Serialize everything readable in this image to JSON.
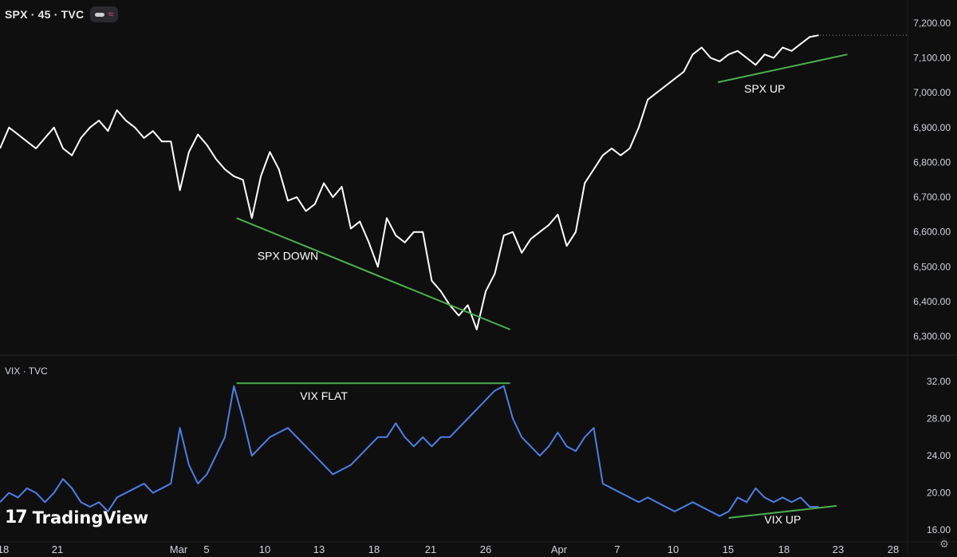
{
  "header": {
    "symbol": "SPX · 45 · TVC"
  },
  "lower_pane": {
    "title": "VIX · TVC"
  },
  "branding": {
    "logo_mark": "17",
    "logo_text": "TradingView"
  },
  "icons": {
    "toggle": "visibility-toggle-icon",
    "wave": "indicator-wave-icon",
    "settings": "settings-gear-icon"
  },
  "colors": {
    "background": "#0f0f0f",
    "spx_line": "#ffffff",
    "vix_line": "#4d7fe6",
    "trendline": "#4caf50",
    "divider": "#2a2a2e",
    "axis_text": "#d1d4dc"
  },
  "chart_data": [
    {
      "type": "line",
      "name": "SPX",
      "x_labels": [
        "18",
        "21",
        "Mar",
        "5",
        "10",
        "13",
        "18",
        "21",
        "26",
        "Apr",
        "7",
        "10",
        "15",
        "18",
        "23",
        "28"
      ],
      "y_ticks": [
        "6,300.00",
        "6,400.00",
        "6,500.00",
        "6,600.00",
        "6,700.00",
        "6,800.00",
        "6,900.00",
        "7,000.00",
        "7,100.00",
        "7,200.00"
      ],
      "ylim": [
        6290,
        7225
      ],
      "x_range": [
        0,
        100
      ],
      "series": [
        {
          "values": [
            [
              0,
              6840
            ],
            [
              1,
              6900
            ],
            [
              2,
              6880
            ],
            [
              3,
              6860
            ],
            [
              4,
              6840
            ],
            [
              5,
              6870
            ],
            [
              6,
              6900
            ],
            [
              7,
              6840
            ],
            [
              8,
              6820
            ],
            [
              9,
              6870
            ],
            [
              10,
              6900
            ],
            [
              11,
              6920
            ],
            [
              12,
              6890
            ],
            [
              13,
              6950
            ],
            [
              14,
              6920
            ],
            [
              15,
              6900
            ],
            [
              16,
              6870
            ],
            [
              17,
              6890
            ],
            [
              18,
              6860
            ],
            [
              19,
              6860
            ],
            [
              20,
              6720
            ],
            [
              21,
              6830
            ],
            [
              22,
              6880
            ],
            [
              23,
              6850
            ],
            [
              24,
              6810
            ],
            [
              25,
              6780
            ],
            [
              26,
              6760
            ],
            [
              27,
              6750
            ],
            [
              28,
              6640
            ],
            [
              29,
              6760
            ],
            [
              30,
              6830
            ],
            [
              31,
              6780
            ],
            [
              32,
              6690
            ],
            [
              33,
              6700
            ],
            [
              34,
              6660
            ],
            [
              35,
              6680
            ],
            [
              36,
              6740
            ],
            [
              37,
              6700
            ],
            [
              38,
              6730
            ],
            [
              39,
              6610
            ],
            [
              40,
              6630
            ],
            [
              41,
              6570
            ],
            [
              42,
              6500
            ],
            [
              43,
              6640
            ],
            [
              44,
              6590
            ],
            [
              45,
              6570
            ],
            [
              46,
              6600
            ],
            [
              47,
              6600
            ],
            [
              48,
              6460
            ],
            [
              49,
              6430
            ],
            [
              50,
              6390
            ],
            [
              51,
              6360
            ],
            [
              52,
              6390
            ],
            [
              53,
              6320
            ],
            [
              54,
              6430
            ],
            [
              55,
              6480
            ],
            [
              56,
              6590
            ],
            [
              57,
              6600
            ],
            [
              58,
              6540
            ],
            [
              59,
              6580
            ],
            [
              60,
              6600
            ],
            [
              61,
              6620
            ],
            [
              62,
              6650
            ],
            [
              63,
              6560
            ],
            [
              64,
              6600
            ],
            [
              65,
              6740
            ],
            [
              66,
              6780
            ],
            [
              67,
              6820
            ],
            [
              68,
              6840
            ],
            [
              69,
              6820
            ],
            [
              70,
              6840
            ],
            [
              71,
              6900
            ],
            [
              72,
              6980
            ],
            [
              73,
              7000
            ],
            [
              74,
              7020
            ],
            [
              75,
              7040
            ],
            [
              76,
              7060
            ],
            [
              77,
              7110
            ],
            [
              78,
              7130
            ],
            [
              79,
              7100
            ],
            [
              80,
              7090
            ],
            [
              81,
              7110
            ],
            [
              82,
              7120
            ],
            [
              83,
              7100
            ],
            [
              84,
              7080
            ],
            [
              85,
              7110
            ],
            [
              86,
              7100
            ],
            [
              87,
              7130
            ],
            [
              88,
              7120
            ],
            [
              89,
              7140
            ],
            [
              90,
              7160
            ],
            [
              91,
              7165
            ]
          ]
        }
      ],
      "annotations": [
        {
          "text": "SPX DOWN",
          "x": 32,
          "y": 6520
        },
        {
          "text": "SPX UP",
          "x": 85,
          "y": 7000
        }
      ],
      "trendlines": [
        {
          "from": [
            26.3,
            6640
          ],
          "to": [
            56.7,
            6320
          ]
        },
        {
          "from": [
            79.8,
            7030
          ],
          "to": [
            94.2,
            7110
          ]
        }
      ],
      "grid": false
    },
    {
      "type": "line",
      "name": "VIX",
      "y_ticks": [
        "16.00",
        "20.00",
        "24.00",
        "28.00",
        "32.00"
      ],
      "ylim": [
        15.5,
        33.2
      ],
      "x_range": [
        0,
        100
      ],
      "series": [
        {
          "values": [
            [
              0,
              19
            ],
            [
              1,
              20
            ],
            [
              2,
              19.5
            ],
            [
              3,
              20.5
            ],
            [
              4,
              20
            ],
            [
              5,
              19
            ],
            [
              6,
              20
            ],
            [
              7,
              21.5
            ],
            [
              8,
              20.5
            ],
            [
              9,
              19
            ],
            [
              10,
              18.5
            ],
            [
              11,
              19
            ],
            [
              12,
              18
            ],
            [
              13,
              19.5
            ],
            [
              14,
              20
            ],
            [
              15,
              20.5
            ],
            [
              16,
              21
            ],
            [
              17,
              20
            ],
            [
              18,
              20.5
            ],
            [
              19,
              21
            ],
            [
              20,
              27
            ],
            [
              21,
              23
            ],
            [
              22,
              21
            ],
            [
              23,
              22
            ],
            [
              24,
              24
            ],
            [
              25,
              26
            ],
            [
              26,
              31.5
            ],
            [
              27,
              28
            ],
            [
              28,
              24
            ],
            [
              29,
              25
            ],
            [
              30,
              26
            ],
            [
              31,
              26.5
            ],
            [
              32,
              27
            ],
            [
              33,
              26
            ],
            [
              34,
              25
            ],
            [
              35,
              24
            ],
            [
              36,
              23
            ],
            [
              37,
              22
            ],
            [
              38,
              22.5
            ],
            [
              39,
              23
            ],
            [
              40,
              24
            ],
            [
              41,
              25
            ],
            [
              42,
              26
            ],
            [
              43,
              26
            ],
            [
              44,
              27.5
            ],
            [
              45,
              26
            ],
            [
              46,
              25
            ],
            [
              47,
              26
            ],
            [
              48,
              25
            ],
            [
              49,
              26
            ],
            [
              50,
              26
            ],
            [
              51,
              27
            ],
            [
              52,
              28
            ],
            [
              53,
              29
            ],
            [
              54,
              30
            ],
            [
              55,
              31
            ],
            [
              56,
              31.5
            ],
            [
              57,
              28
            ],
            [
              58,
              26
            ],
            [
              59,
              25
            ],
            [
              60,
              24
            ],
            [
              61,
              25
            ],
            [
              62,
              26.5
            ],
            [
              63,
              25
            ],
            [
              64,
              24.5
            ],
            [
              65,
              26
            ],
            [
              66,
              27
            ],
            [
              67,
              21
            ],
            [
              68,
              20.5
            ],
            [
              69,
              20
            ],
            [
              70,
              19.5
            ],
            [
              71,
              19
            ],
            [
              72,
              19.5
            ],
            [
              73,
              19
            ],
            [
              74,
              18.5
            ],
            [
              75,
              18
            ],
            [
              76,
              18.5
            ],
            [
              77,
              19
            ],
            [
              78,
              18.5
            ],
            [
              79,
              18
            ],
            [
              80,
              17.5
            ],
            [
              81,
              18
            ],
            [
              82,
              19.5
            ],
            [
              83,
              19
            ],
            [
              84,
              20.5
            ],
            [
              85,
              19.5
            ],
            [
              86,
              19
            ],
            [
              87,
              19.5
            ],
            [
              88,
              19
            ],
            [
              89,
              19.5
            ],
            [
              90,
              18.5
            ],
            [
              91,
              18.5
            ]
          ]
        }
      ],
      "annotations": [
        {
          "text": "VIX FLAT",
          "x": 36,
          "y": 30
        },
        {
          "text": "VIX UP",
          "x": 87,
          "y": 16.7
        }
      ],
      "trendlines": [
        {
          "from": [
            26.3,
            31.8
          ],
          "to": [
            56.7,
            31.8
          ]
        },
        {
          "from": [
            81,
            17.3
          ],
          "to": [
            93,
            18.6
          ]
        }
      ],
      "grid": false
    }
  ]
}
